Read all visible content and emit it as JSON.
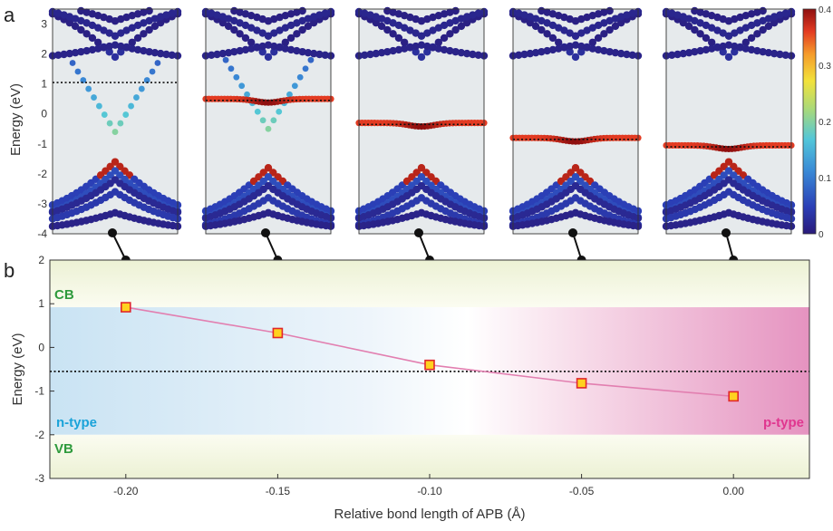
{
  "panel_a": {
    "label": "a",
    "ylabel": "Energy (eV)",
    "yticks": [
      "3",
      "2",
      "1",
      "0",
      "-1",
      "-2",
      "-3",
      "-4"
    ],
    "colorbar": {
      "ticks": [
        "0.4",
        "0.3",
        "0.2",
        "0.1",
        "0"
      ],
      "min": 0,
      "max": 0.4
    },
    "fermi_levels_eV": [
      1.05,
      0.45,
      -0.35,
      -0.85,
      -1.1
    ]
  },
  "panel_b": {
    "label": "b",
    "region_labels": {
      "cb": "CB",
      "vb": "VB",
      "n_type": "n-type",
      "p_type": "p-type"
    },
    "colors": {
      "n_type": "#1aa3d9",
      "p_type": "#e0368f",
      "band_edge": "#2e9a3c",
      "line": "#e27fb0",
      "marker_fill": "#ffd21f",
      "marker_edge": "#e0262b"
    }
  },
  "chart_data": [
    {
      "type": "scatter",
      "title": "",
      "ylabel": "Energy (eV)",
      "xlabel": "",
      "ylim": [
        -4,
        3.5
      ],
      "panels": 5,
      "colorbar_range": [
        0,
        0.4
      ]
    },
    {
      "type": "line",
      "title": "",
      "xlabel": "Relative bond length of APB (Å)",
      "ylabel": "Energy (eV)",
      "xlim": [
        -0.225,
        0.025
      ],
      "ylim": [
        -3,
        2
      ],
      "xticks": [
        "-0.20",
        "-0.15",
        "-0.10",
        "-0.05",
        "0.00"
      ],
      "yticks": [
        "2",
        "1",
        "0",
        "-1",
        "-2",
        "-3"
      ],
      "x": [
        -0.2,
        -0.15,
        -0.1,
        -0.05,
        0.0
      ],
      "series": [
        {
          "values": [
            0.92,
            0.33,
            -0.4,
            -0.82,
            -1.12
          ]
        }
      ],
      "fermi_level": -0.55,
      "cb_min": 0.92,
      "vb_max": -2.0
    }
  ]
}
